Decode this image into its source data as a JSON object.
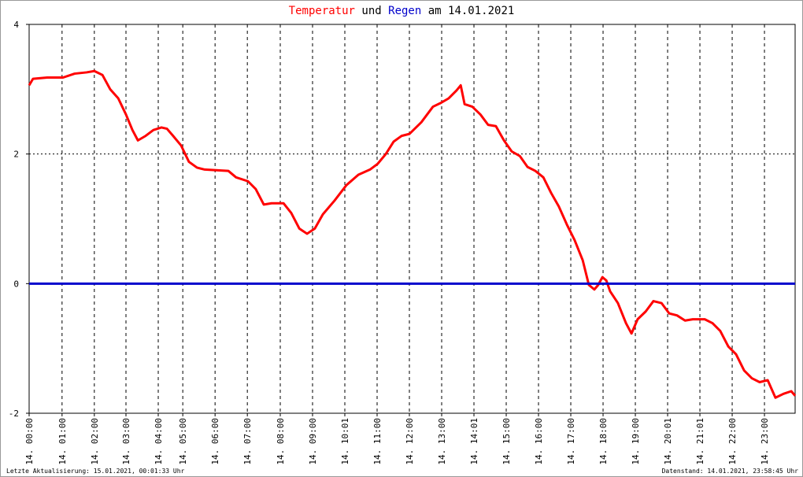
{
  "chart_data": {
    "type": "line",
    "title": {
      "connector": "und",
      "date": "am 14.01.2021"
    },
    "series": [
      {
        "name": "Temperatur",
        "color": "#ff0000",
        "x": [
          0,
          0.12,
          0.56,
          1.05,
          1.41,
          1.78,
          2.02,
          2.27,
          2.51,
          2.76,
          3.0,
          3.2,
          3.37,
          3.61,
          3.85,
          4.1,
          4.27,
          4.46,
          4.71,
          4.95,
          5.2,
          5.44,
          5.8,
          6.17,
          6.41,
          6.78,
          7.02,
          7.27,
          7.51,
          7.88,
          8.12,
          8.37,
          8.61,
          8.85,
          9.1,
          9.46,
          9.83,
          10.2,
          10.56,
          10.8,
          11.05,
          11.29,
          11.54,
          11.78,
          12.15,
          12.51,
          12.76,
          13.0,
          13.24,
          13.37,
          13.49,
          13.73,
          13.98,
          14.22,
          14.46,
          14.71,
          14.95,
          15.2,
          15.44,
          15.68,
          15.93,
          16.17,
          16.41,
          16.66,
          16.9,
          17.15,
          17.34,
          17.51,
          17.63,
          17.76,
          17.88,
          18.0,
          18.24,
          18.49,
          18.66,
          18.85,
          19.1,
          19.34,
          19.59,
          19.83,
          20.07,
          20.32,
          20.56,
          20.93,
          21.17,
          21.41,
          21.66,
          21.9,
          22.15,
          22.39,
          22.63,
          22.88,
          23.12,
          23.37,
          23.61,
          23.73
        ],
        "values": [
          3.06,
          3.16,
          3.18,
          3.18,
          3.24,
          3.26,
          3.28,
          3.22,
          3.0,
          2.86,
          2.61,
          2.37,
          2.21,
          2.28,
          2.37,
          2.41,
          2.39,
          2.28,
          2.13,
          1.88,
          1.79,
          1.76,
          1.75,
          1.74,
          1.64,
          1.58,
          1.46,
          1.22,
          1.24,
          1.24,
          1.09,
          0.85,
          0.77,
          0.85,
          1.07,
          1.28,
          1.52,
          1.68,
          1.76,
          1.85,
          2.0,
          2.19,
          2.28,
          2.31,
          2.49,
          2.73,
          2.79,
          2.86,
          2.98,
          3.06,
          2.77,
          2.73,
          2.61,
          2.45,
          2.43,
          2.21,
          2.04,
          1.97,
          1.8,
          1.74,
          1.64,
          1.4,
          1.19,
          0.91,
          0.67,
          0.36,
          -0.02,
          -0.09,
          -0.02,
          0.1,
          0.05,
          -0.12,
          -0.3,
          -0.61,
          -0.77,
          -0.55,
          -0.43,
          -0.27,
          -0.3,
          -0.46,
          -0.49,
          -0.57,
          -0.55,
          -0.55,
          -0.61,
          -0.73,
          -0.97,
          -1.09,
          -1.34,
          -1.46,
          -1.52,
          -1.49,
          -1.76,
          -1.7,
          -1.66,
          -1.73
        ]
      },
      {
        "name": "Regen",
        "color": "#0000cc",
        "x": [
          0,
          23.73
        ],
        "values": [
          0,
          0
        ]
      }
    ],
    "xlim": [
      0,
      23.73
    ],
    "ylim": [
      -2,
      4
    ],
    "yticks": [
      -2,
      0,
      2,
      4
    ],
    "xticks": [
      {
        "value": 0,
        "label": "14. 00:00"
      },
      {
        "value": 1.02,
        "label": "14. 01:00"
      },
      {
        "value": 2.02,
        "label": "14. 02:00"
      },
      {
        "value": 3.0,
        "label": "14. 03:00"
      },
      {
        "value": 4.0,
        "label": "14. 04:00"
      },
      {
        "value": 4.76,
        "label": "14. 05:00"
      },
      {
        "value": 5.76,
        "label": "14. 06:00"
      },
      {
        "value": 6.76,
        "label": "14. 07:00"
      },
      {
        "value": 7.78,
        "label": "14. 08:00"
      },
      {
        "value": 8.78,
        "label": "14. 09:00"
      },
      {
        "value": 9.78,
        "label": "14. 10:01"
      },
      {
        "value": 10.78,
        "label": "14. 11:00"
      },
      {
        "value": 11.78,
        "label": "14. 12:00"
      },
      {
        "value": 12.78,
        "label": "14. 13:00"
      },
      {
        "value": 13.78,
        "label": "14. 14:01"
      },
      {
        "value": 14.78,
        "label": "14. 15:00"
      },
      {
        "value": 15.78,
        "label": "14. 16:00"
      },
      {
        "value": 16.78,
        "label": "14. 17:00"
      },
      {
        "value": 17.78,
        "label": "14. 18:00"
      },
      {
        "value": 18.78,
        "label": "14. 19:00"
      },
      {
        "value": 19.78,
        "label": "14. 20:01"
      },
      {
        "value": 20.78,
        "label": "14. 21:01"
      },
      {
        "value": 21.78,
        "label": "14. 22:00"
      },
      {
        "value": 22.78,
        "label": "14. 23:00"
      }
    ],
    "grid": true,
    "footer_left": "Letzte Aktualisierung: 15.01.2021, 00:01:33 Uhr",
    "footer_right": "Datenstand: 14.01.2021, 23:58:45 Uhr"
  }
}
